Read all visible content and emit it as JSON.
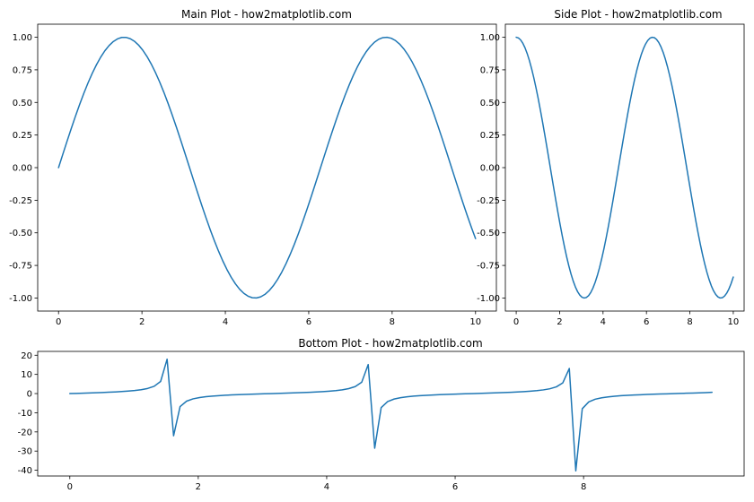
{
  "colors": {
    "line": "#1f77b4",
    "background": "#ffffff",
    "axes": "#000000"
  },
  "chart_data": [
    {
      "type": "line",
      "title": "Main Plot - how2matplotlib.com",
      "function": "sin",
      "x_range": [
        0,
        10
      ],
      "samples": 100,
      "xlim": [
        -0.5,
        10.5
      ],
      "ylim": [
        -1.1,
        1.1
      ],
      "xticks": [
        0,
        2,
        4,
        6,
        8,
        10
      ],
      "xtick_labels": [
        "0",
        "2",
        "4",
        "6",
        "8",
        "10"
      ],
      "yticks": [
        1.0,
        0.75,
        0.5,
        0.25,
        0.0,
        -0.25,
        -0.5,
        -0.75,
        -1.0
      ],
      "ytick_labels": [
        "1.00",
        "0.75",
        "0.50",
        "0.25",
        "0.00",
        "-0.25",
        "-0.50",
        "-0.75",
        "-1.00"
      ],
      "grid": false
    },
    {
      "type": "line",
      "title": "Side Plot - how2matplotlib.com",
      "function": "cos",
      "x_range": [
        0,
        10
      ],
      "samples": 100,
      "xlim": [
        -0.5,
        10.5
      ],
      "ylim": [
        -1.1,
        1.1
      ],
      "xticks": [
        0,
        2,
        4,
        6,
        8,
        10
      ],
      "xtick_labels": [
        "0",
        "2",
        "4",
        "6",
        "8",
        "10"
      ],
      "yticks": [
        1.0,
        0.75,
        0.5,
        0.25,
        0.0,
        -0.25,
        -0.5,
        -0.75,
        -1.0
      ],
      "ytick_labels": [
        "1.00",
        "0.75",
        "0.50",
        "0.25",
        "0.00",
        "-0.25",
        "-0.50",
        "-0.75",
        "-1.00"
      ],
      "grid": false
    },
    {
      "type": "line",
      "title": "Bottom Plot - how2matplotlib.com",
      "function": "tan",
      "x_range": [
        0,
        10
      ],
      "samples": 100,
      "xlim": [
        -0.5,
        10.5
      ],
      "ylim": [
        -43,
        22
      ],
      "xticks": [
        0,
        2,
        4,
        6,
        8
      ],
      "xtick_labels": [
        "0",
        "2",
        "4",
        "6",
        "8"
      ],
      "yticks": [
        20,
        10,
        0,
        -10,
        -20,
        -30,
        -40
      ],
      "ytick_labels": [
        "20",
        "10",
        "0",
        "-10",
        "-20",
        "-30",
        "-40"
      ],
      "grid": false
    }
  ]
}
